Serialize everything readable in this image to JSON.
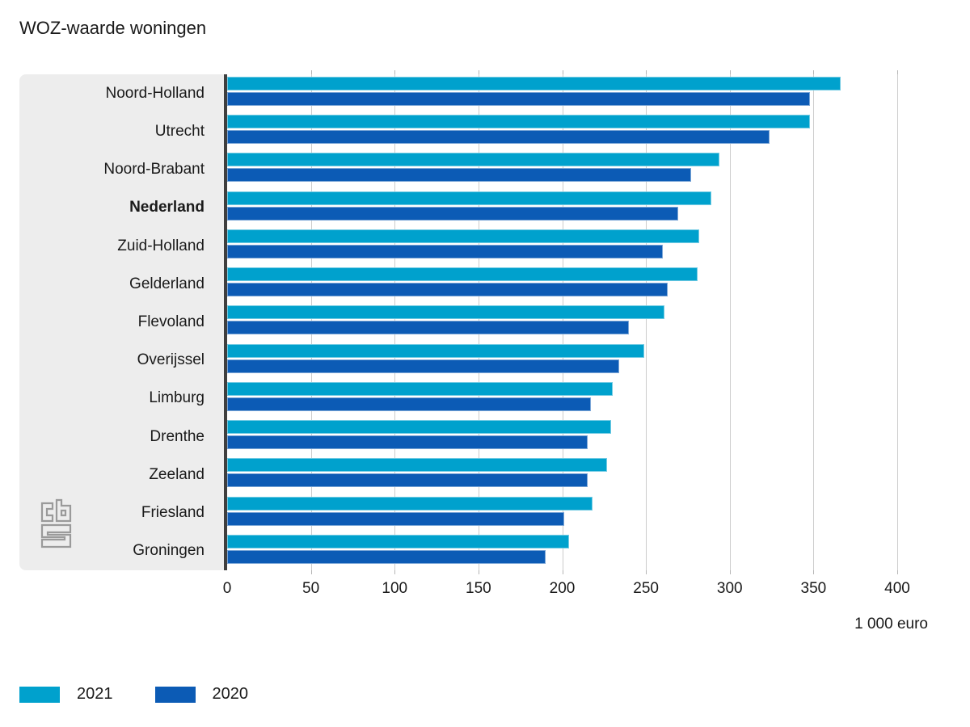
{
  "title": "WOZ-waarde woningen",
  "chart_data": {
    "type": "bar",
    "orientation": "horizontal",
    "title": "WOZ-waarde woningen",
    "xlabel": "1 000 euro",
    "ylabel": "",
    "xlim": [
      0,
      400
    ],
    "x_ticks": [
      0,
      50,
      100,
      150,
      200,
      250,
      300,
      350,
      400
    ],
    "grid": true,
    "legend_position": "bottom-left",
    "categories": [
      "Noord-Holland",
      "Utrecht",
      "Noord-Brabant",
      "Nederland",
      "Zuid-Holland",
      "Gelderland",
      "Flevoland",
      "Overijssel",
      "Limburg",
      "Drenthe",
      "Zeeland",
      "Friesland",
      "Groningen"
    ],
    "emphasized_category": "Nederland",
    "series": [
      {
        "name": "2021",
        "color": "#00a1cd",
        "values": [
          366,
          348,
          294,
          289,
          282,
          281,
          261,
          249,
          230,
          229,
          227,
          218,
          204
        ]
      },
      {
        "name": "2020",
        "color": "#0c5bb5",
        "values": [
          348,
          324,
          277,
          269,
          260,
          263,
          240,
          234,
          217,
          215,
          215,
          201,
          190
        ]
      }
    ]
  },
  "unit_label": "1 000 euro",
  "legend": [
    {
      "label": "2021",
      "color": "#00a1cd"
    },
    {
      "label": "2020",
      "color": "#0c5bb5"
    }
  ],
  "logo": {
    "name": "cbs-logo",
    "color": "#9a9a9a"
  },
  "colors": {
    "panel_background": "#ededed",
    "axis_line": "#3f3f3f",
    "gridline": "#cccccc",
    "text": "#1a1a1a"
  }
}
